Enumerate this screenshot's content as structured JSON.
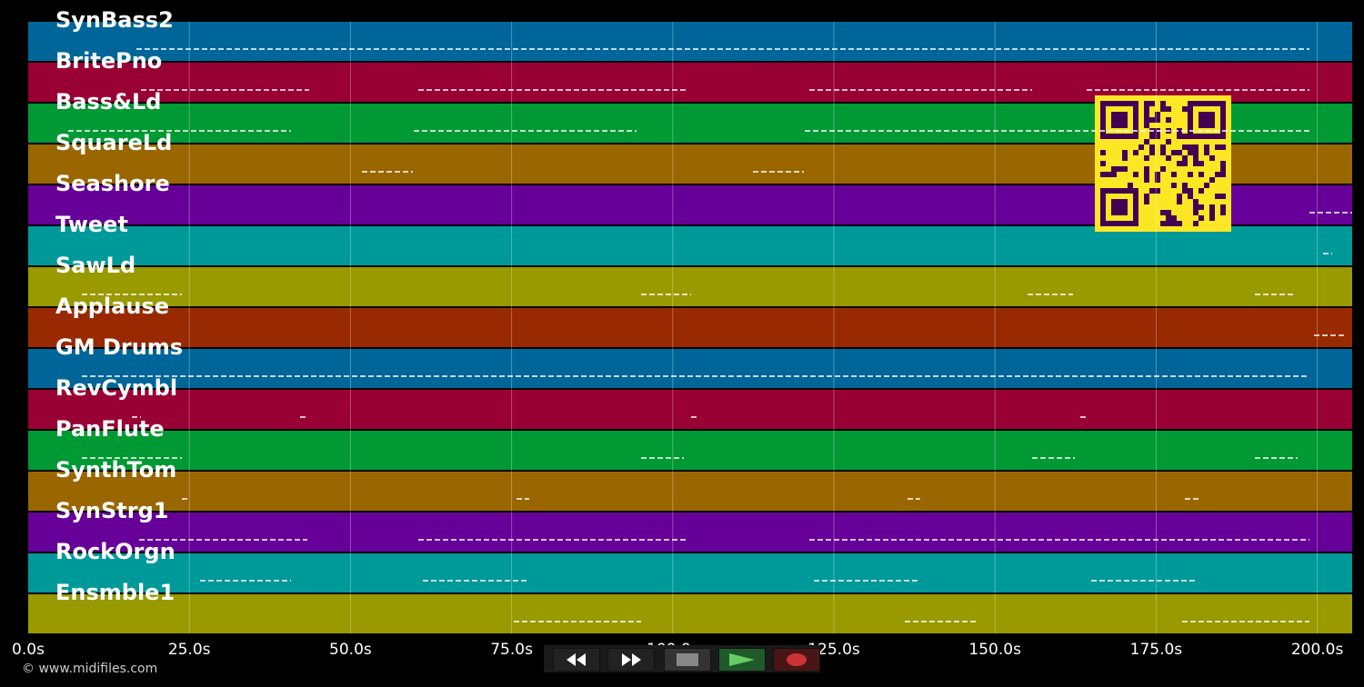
{
  "tracks": [
    {
      "name": "SynBass2",
      "color": "#006699"
    },
    {
      "name": "BritePno",
      "color": "#990033"
    },
    {
      "name": "Bass&Ld",
      "color": "#009933"
    },
    {
      "name": "SquareLd",
      "color": "#996600"
    },
    {
      "name": "Seashore",
      "color": "#660099"
    },
    {
      "name": "Tweet",
      "color": "#009999"
    },
    {
      "name": "SawLd",
      "color": "#999900"
    },
    {
      "name": "Applause",
      "color": "#992900"
    },
    {
      "name": "GM Drums",
      "color": "#006699"
    },
    {
      "name": "RevCymbl",
      "color": "#990033"
    },
    {
      "name": "PanFlute",
      "color": "#009933"
    },
    {
      "name": "SynthTom",
      "color": "#996600"
    },
    {
      "name": "SynStrg1",
      "color": "#660099"
    },
    {
      "name": "RockOrgn",
      "color": "#009999"
    },
    {
      "name": "Ensmble1",
      "color": "#999900"
    }
  ],
  "time_axis": {
    "ticks": [
      "0.0s",
      "25.0s",
      "50.0s",
      "75.0s",
      "100.0s",
      "125.0s",
      "150.0s",
      "175.0s",
      "200.0s"
    ]
  },
  "copyright": "© www.midifiles.com",
  "transport": {
    "rewind_icon": "rewind-icon",
    "forward_icon": "fast-forward-icon",
    "stop_icon": "stop-icon",
    "play_icon": "play-icon",
    "record_icon": "record-icon",
    "play_color": "#66cc66",
    "record_color": "#cc3333"
  },
  "qr_code": {
    "color": "#fde725",
    "dark": "#440154"
  }
}
